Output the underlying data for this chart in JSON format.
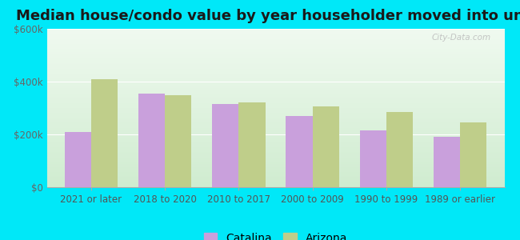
{
  "title": "Median house/condo value by year householder moved into unit",
  "categories": [
    "2021 or later",
    "2018 to 2020",
    "2010 to 2017",
    "2000 to 2009",
    "1990 to 1999",
    "1989 or earlier"
  ],
  "catalina_values": [
    210000,
    355000,
    315000,
    270000,
    215000,
    190000
  ],
  "arizona_values": [
    410000,
    350000,
    320000,
    305000,
    285000,
    245000
  ],
  "catalina_color": "#c9a0dc",
  "arizona_color": "#bfce8a",
  "ylim": [
    0,
    600000
  ],
  "yticks": [
    0,
    200000,
    400000,
    600000
  ],
  "ytick_labels": [
    "$0",
    "$200k",
    "$400k",
    "$600k"
  ],
  "plot_bg_top": "#f0faf0",
  "plot_bg_bottom": "#d0ecd0",
  "outer_bg": "#00e8f8",
  "title_fontsize": 13,
  "tick_fontsize": 8.5,
  "legend_fontsize": 10,
  "watermark": "City-Data.com",
  "bar_width": 0.36
}
